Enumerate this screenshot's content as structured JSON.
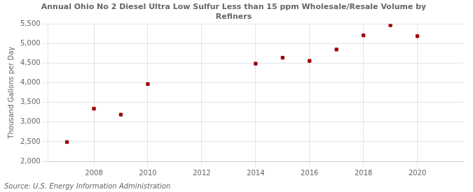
{
  "chart_data": {
    "type": "scatter",
    "title": "Annual Ohio No 2 Diesel Ultra Low Sulfur Less than 15 ppm Wholesale/Resale Volume by\nRefiners",
    "ylabel": "Thousand Gallons per Day",
    "source": "Source: U.S. Energy Information Administration",
    "x": [
      2007,
      2008,
      2009,
      2010,
      2014,
      2015,
      2016,
      2017,
      2018,
      2019,
      2020
    ],
    "values": [
      2490,
      3340,
      3190,
      3970,
      4490,
      4640,
      4560,
      4850,
      5210,
      5470,
      5190
    ],
    "color": "#9b0000",
    "marker": "square",
    "xlim": [
      2006.3,
      2021.7
    ],
    "xticks": [
      2008,
      2010,
      2012,
      2014,
      2016,
      2018,
      2020
    ],
    "ylim": [
      2000,
      5500
    ],
    "yticks": [
      {
        "value": 2000,
        "label": "2,000"
      },
      {
        "value": 2500,
        "label": "2,500"
      },
      {
        "value": 3000,
        "label": "3,000"
      },
      {
        "value": 3500,
        "label": "3,500"
      },
      {
        "value": 4000,
        "label": "4,000"
      },
      {
        "value": 4500,
        "label": "4,500"
      },
      {
        "value": 5000,
        "label": "5,000"
      },
      {
        "value": 5500,
        "label": "5,500"
      }
    ],
    "grid": true
  }
}
